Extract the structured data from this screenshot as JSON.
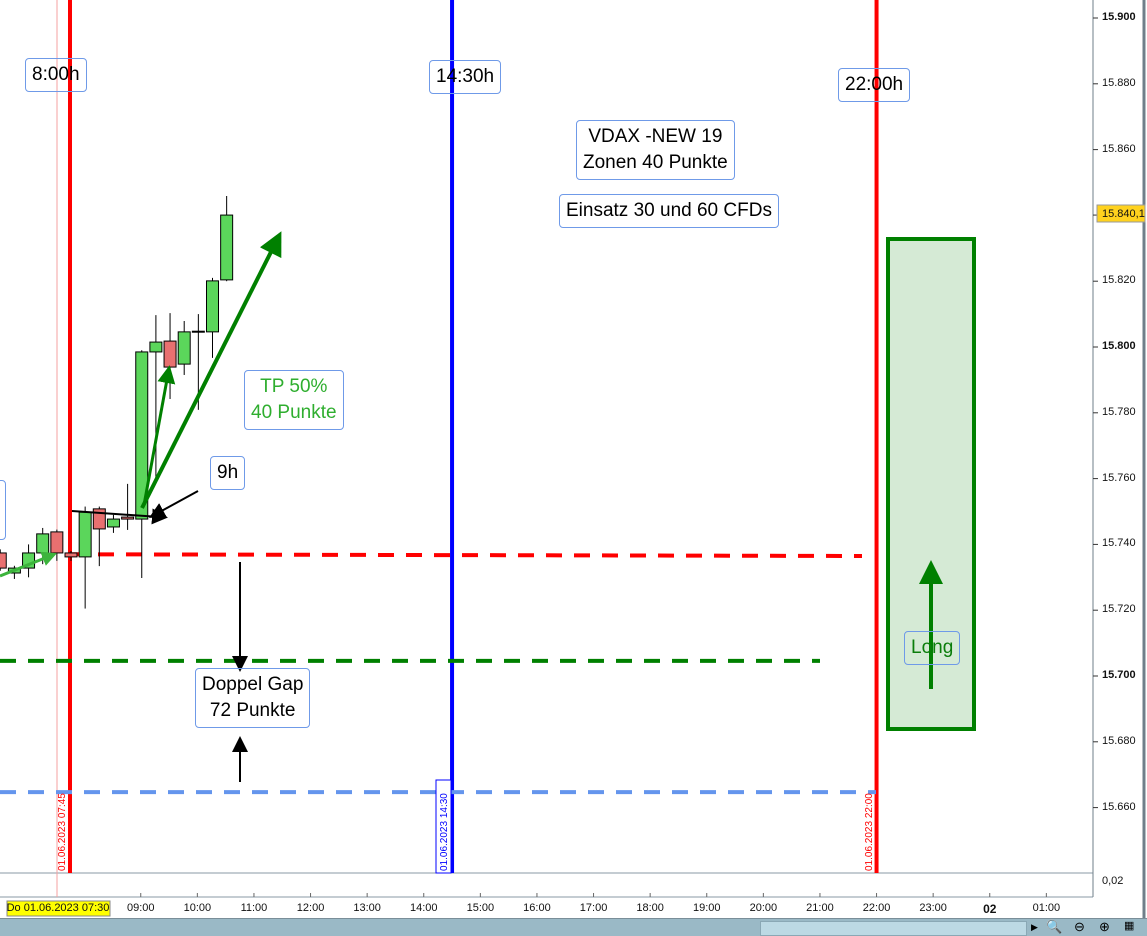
{
  "chart_data": {
    "type": "candlestick",
    "interval": "15min",
    "ylim": [
      15650,
      15905
    ],
    "y_ticks": [
      "15.900",
      "15.880",
      "15.860",
      "15.840,1",
      "15.820",
      "15.800",
      "15.780",
      "15.760",
      "15.740",
      "15.720",
      "15.700",
      "15.680",
      "15.660"
    ],
    "y_tick_values": [
      15900,
      15880,
      15860,
      15840.1,
      15820,
      15800,
      15780,
      15760,
      15740,
      15720,
      15700,
      15680,
      15660
    ],
    "current_price_label": "15.840,1",
    "x_ticks": [
      "09:00",
      "10:00",
      "11:00",
      "12:00",
      "13:00",
      "14:00",
      "15:00",
      "16:00",
      "17:00",
      "18:00",
      "19:00",
      "20:00",
      "21:00",
      "22:00",
      "23:00",
      "02",
      "01:00"
    ],
    "x_tick_hours": [
      9,
      10,
      11,
      12,
      13,
      14,
      15,
      16,
      17,
      18,
      19,
      20,
      21,
      22,
      23,
      24,
      25
    ],
    "cursor_date_label": "Do 01.06.2023 07:30",
    "indicator_value": "0,02",
    "candles": [
      {
        "t": "06:30",
        "o": 15737.4,
        "h": 15738.5,
        "l": 15732.0,
        "c": 15732.8
      },
      {
        "t": "06:45",
        "o": 15731.3,
        "h": 15733.5,
        "l": 15729.5,
        "c": 15732.8
      },
      {
        "t": "07:00",
        "o": 15732.8,
        "h": 15740.0,
        "l": 15730.0,
        "c": 15737.4
      },
      {
        "t": "07:15",
        "o": 15737.4,
        "h": 15745.0,
        "l": 15734.0,
        "c": 15743.2
      },
      {
        "t": "07:30",
        "o": 15743.8,
        "h": 15744.5,
        "l": 15735.0,
        "c": 15737.4
      },
      {
        "t": "07:45",
        "o": 15737.4,
        "h": 15738.0,
        "l": 15735.0,
        "c": 15736.2
      },
      {
        "t": "08:00",
        "o": 15736.2,
        "h": 15751.5,
        "l": 15720.5,
        "c": 15749.8
      },
      {
        "t": "08:15",
        "o": 15750.8,
        "h": 15751.5,
        "l": 15733.4,
        "c": 15744.7
      },
      {
        "t": "08:30",
        "o": 15745.3,
        "h": 15749.0,
        "l": 15743.5,
        "c": 15747.7
      },
      {
        "t": "08:45",
        "o": 15748.3,
        "h": 15758.4,
        "l": 15744.4,
        "c": 15747.7
      },
      {
        "t": "09:00",
        "o": 15747.7,
        "h": 15799.0,
        "l": 15729.8,
        "c": 15798.5
      },
      {
        "t": "09:15",
        "o": 15798.5,
        "h": 15809.7,
        "l": 15760.0,
        "c": 15801.5
      },
      {
        "t": "09:30",
        "o": 15801.8,
        "h": 15810.3,
        "l": 15784.2,
        "c": 15793.9
      },
      {
        "t": "09:45",
        "o": 15794.8,
        "h": 15807.9,
        "l": 15791.5,
        "c": 15804.6
      },
      {
        "t": "10:00",
        "o": 15804.6,
        "h": 15810.0,
        "l": 15780.9,
        "c": 15804.8
      },
      {
        "t": "10:15",
        "o": 15804.6,
        "h": 15821.0,
        "l": 15796.7,
        "c": 15820.1
      },
      {
        "t": "10:30",
        "o": 15820.4,
        "h": 15845.9,
        "l": 15820.0,
        "c": 15840.1
      }
    ],
    "levels": [
      {
        "price": 15737,
        "color": "#ff0000",
        "style": "dashed"
      },
      {
        "price": 15704.6,
        "color": "#008000",
        "style": "dashed"
      },
      {
        "price": 15664.7,
        "color": "#6495ed",
        "style": "dashed"
      }
    ],
    "vertical_lines": [
      {
        "time": "07:45",
        "label": "01.06.2023 07:45",
        "color": "#ff0000"
      },
      {
        "time": "14:30",
        "label": "01.06.2023 14:30",
        "color": "#0000ff"
      },
      {
        "time": "22:00",
        "label": "01.06.2023 22:00",
        "color": "#ff0000"
      }
    ]
  },
  "annotations": {
    "open_label": "8:00h",
    "mid_label": "14:30h",
    "close_label": "22:00h",
    "vdax": "VDAX -NEW 19",
    "zones": "Zonen 40 Punkte",
    "einsatz": "Einsatz 30 und 60 CFDs",
    "tp_line1": "TP 50%",
    "tp_line2": "40 Punkte",
    "nine": "9h",
    "gap_line1": "Doppel Gap",
    "gap_line2": "72 Punkte",
    "long": "Long"
  },
  "colors": {
    "up": "#5bd65b",
    "down": "#e87070",
    "accent_green": "#008000",
    "box_fill": "#d5ead5"
  }
}
